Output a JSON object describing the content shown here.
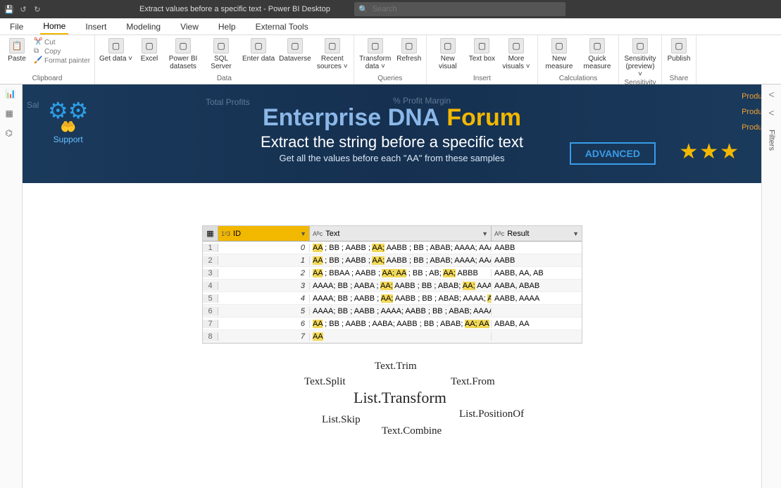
{
  "titlebar": {
    "title": "Extract values before a specific text - Power BI Desktop",
    "search_placeholder": "Search"
  },
  "menubar": [
    "File",
    "Home",
    "Insert",
    "Modeling",
    "View",
    "Help",
    "External Tools"
  ],
  "menubar_active_index": 1,
  "ribbon": {
    "clipboard": {
      "label": "Clipboard",
      "paste": "Paste",
      "cut": "Cut",
      "copy": "Copy",
      "format_painter": "Format painter"
    },
    "data": {
      "label": "Data",
      "items": [
        {
          "label": "Get data",
          "chevron": true
        },
        {
          "label": "Excel"
        },
        {
          "label": "Power BI datasets"
        },
        {
          "label": "SQL Server"
        },
        {
          "label": "Enter data"
        },
        {
          "label": "Dataverse"
        },
        {
          "label": "Recent sources",
          "chevron": true
        }
      ]
    },
    "queries": {
      "label": "Queries",
      "items": [
        {
          "label": "Transform data",
          "chevron": true
        },
        {
          "label": "Refresh"
        }
      ]
    },
    "insert": {
      "label": "Insert",
      "items": [
        {
          "label": "New visual"
        },
        {
          "label": "Text box"
        },
        {
          "label": "More visuals",
          "chevron": true
        }
      ]
    },
    "calc": {
      "label": "Calculations",
      "items": [
        {
          "label": "New measure"
        },
        {
          "label": "Quick measure"
        }
      ]
    },
    "sens": {
      "label": "Sensitivity",
      "items": [
        {
          "label": "Sensitivity (preview)",
          "chevron": true
        }
      ]
    },
    "share": {
      "label": "Share",
      "items": [
        {
          "label": "Publish"
        }
      ]
    }
  },
  "banner": {
    "faint_left": "Sal",
    "faint_mid": "Total Profits",
    "faint_right": "% Profit Margin",
    "brand1": "Enterprise DNA",
    "brand2": "Forum",
    "subtitle": "Extract the string before a specific text",
    "subsub": "Get all the values before each \"AA\" from these samples",
    "support": "Support",
    "advanced": "ADVANCED",
    "stars": "★★★",
    "prods": "Produc\nProduc\nProduct"
  },
  "table": {
    "col_id": "ID",
    "col_text": "Text",
    "col_result": "Result",
    "rows": [
      {
        "n": "1",
        "id": "0",
        "text": [
          [
            "AA",
            1
          ],
          [
            " ; BB ; AABB ; ",
            0
          ],
          [
            "AA;",
            1
          ],
          [
            " AABB ; BB ; ABAB; AAAA; AAAA",
            0
          ]
        ],
        "result": "AABB"
      },
      {
        "n": "2",
        "id": "1",
        "text": [
          [
            "AA",
            1
          ],
          [
            " ; BB ; AABB ; ",
            0
          ],
          [
            "AA;",
            1
          ],
          [
            " AABB ; BB ; ABAB; AAAA; AAAA",
            0
          ]
        ],
        "result": "AABB"
      },
      {
        "n": "3",
        "id": "2",
        "text": [
          [
            "AA",
            1
          ],
          [
            " ; BBAA ; AABB ; ",
            0
          ],
          [
            "AA; AA",
            1
          ],
          [
            " ; BB ; AB; ",
            0
          ],
          [
            "AA;",
            1
          ],
          [
            " ABBB",
            0
          ]
        ],
        "result": "AABB, AA, AB"
      },
      {
        "n": "4",
        "id": "3",
        "text": [
          [
            "AAAA; BB ; AABA ; ",
            0
          ],
          [
            "AA;",
            1
          ],
          [
            " AABB ; BB ; ABAB; ",
            0
          ],
          [
            "AA;",
            1
          ],
          [
            " AAAA",
            0
          ]
        ],
        "result": "AABA, ABAB"
      },
      {
        "n": "5",
        "id": "4",
        "text": [
          [
            "AAAA; BB ; AABB ; ",
            0
          ],
          [
            "AA;",
            1
          ],
          [
            " AABB ; BB ; ABAB; AAAA; ",
            0
          ],
          [
            "AA",
            1
          ]
        ],
        "result": "AABB, AAAA"
      },
      {
        "n": "6",
        "id": "5",
        "text": [
          [
            "AAAA; BB ; AABB ; AAAA; AABB ; BB ; ABAB; AAAA; AABB",
            0
          ]
        ],
        "result": ""
      },
      {
        "n": "7",
        "id": "6",
        "text": [
          [
            "AA",
            1
          ],
          [
            " ; BB ; AABB ; AABA; AABB ; BB ; ABAB; ",
            0
          ],
          [
            "AA; AA",
            1
          ]
        ],
        "result": "ABAB, AA"
      },
      {
        "n": "8",
        "id": "7",
        "text": [
          [
            "AA",
            1
          ]
        ],
        "result": ""
      }
    ]
  },
  "cloud": [
    "Text.Trim",
    "Text.Split",
    "Text.From",
    "List.Transform",
    "List.Skip",
    "List.PositionOf",
    "Text.Combine"
  ],
  "filters_label": "Filters"
}
